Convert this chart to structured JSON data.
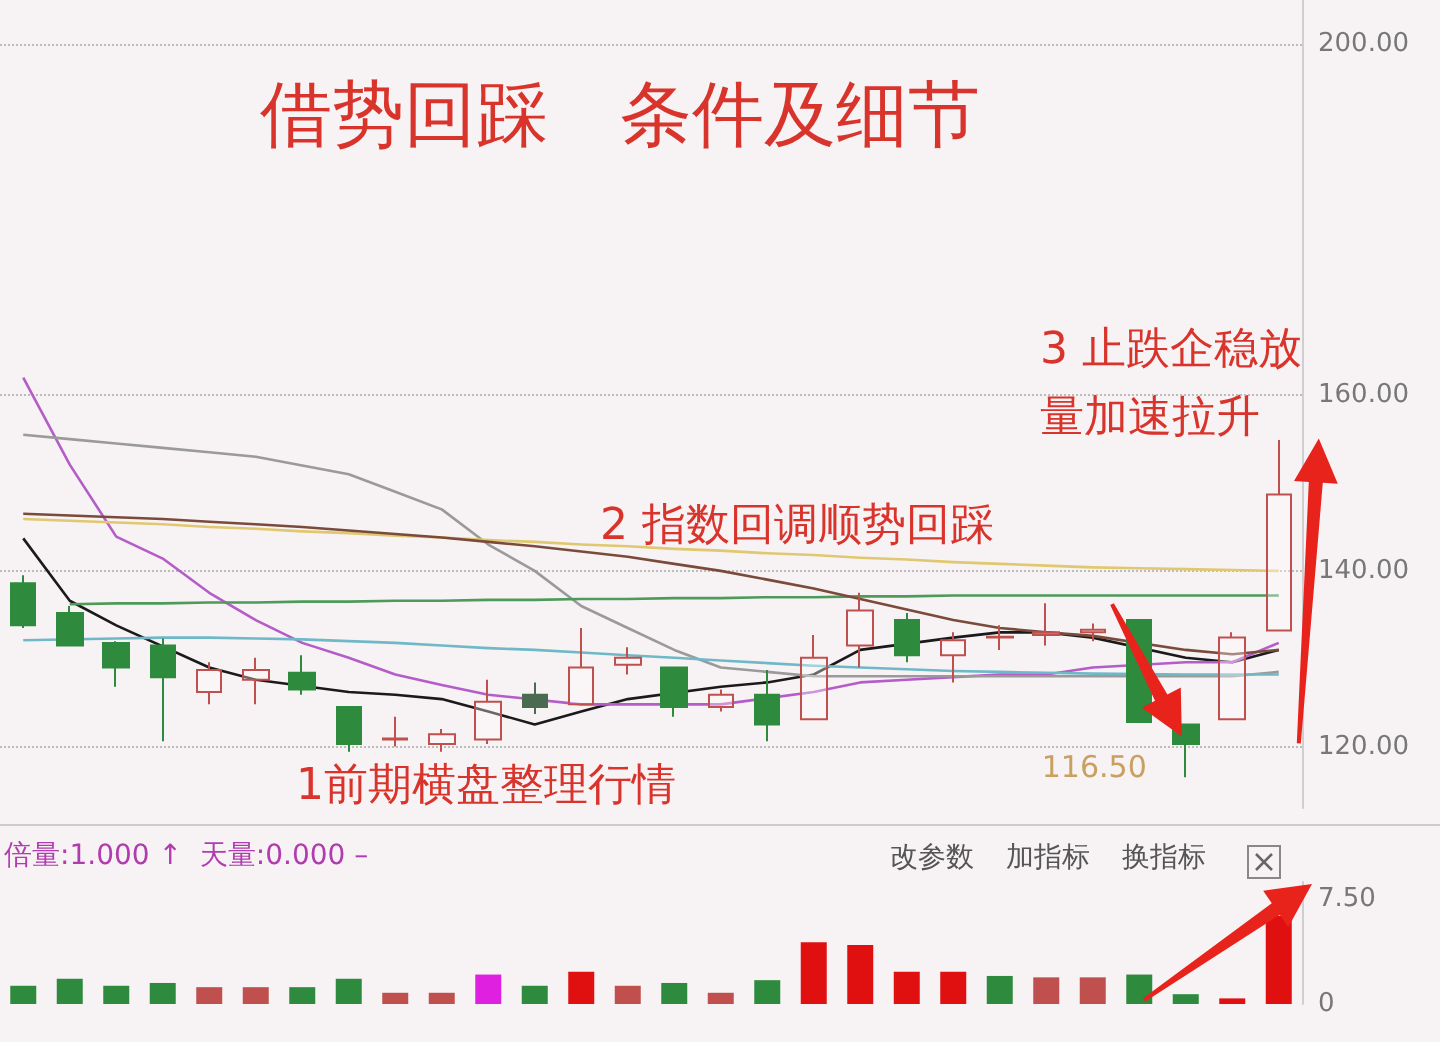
{
  "chart_data": [
    {
      "type": "candlestick",
      "title": "借势回踩　条件及细节",
      "categories": [
        null,
        null,
        null,
        null,
        null,
        null,
        null,
        null,
        null,
        null,
        null,
        null,
        null,
        null,
        null,
        null,
        null,
        null,
        null,
        null,
        null,
        null,
        null,
        null,
        null,
        null,
        null,
        null
      ],
      "ohlc": [
        [
          138.6,
          139.5,
          133.5,
          133.8
        ],
        [
          135.2,
          136,
          131.5,
          131.5
        ],
        [
          131.8,
          132,
          126.8,
          129
        ],
        [
          131.5,
          132.3,
          120.6,
          127.9
        ],
        [
          126.2,
          129.6,
          124.8,
          128.7
        ],
        [
          127.6,
          130.1,
          124.8,
          128.7
        ],
        [
          128.4,
          130.4,
          125.9,
          126.5
        ],
        [
          124.5,
          124.5,
          119.4,
          120.3
        ],
        [
          120.8,
          123.4,
          120,
          120.9
        ],
        [
          120.3,
          122,
          119.4,
          121.4
        ],
        [
          120.8,
          127.6,
          120.3,
          125.1
        ],
        [
          125.9,
          127.3,
          123.7,
          124.5
        ],
        [
          124.8,
          133.5,
          124.8,
          129
        ],
        [
          129.3,
          131.3,
          128.2,
          130.1
        ],
        [
          129,
          129,
          123.4,
          124.5
        ],
        [
          124.5,
          126.5,
          124,
          125.9
        ],
        [
          125.9,
          128.7,
          120.6,
          122.5
        ],
        [
          123.1,
          132.7,
          123.1,
          130.1
        ],
        [
          131.5,
          137.5,
          129,
          135.5
        ],
        [
          134.4,
          135.2,
          129.6,
          130.4
        ],
        [
          130.4,
          133,
          127.3,
          132.1
        ],
        [
          132.4,
          133.8,
          131,
          132.5
        ],
        [
          132.7,
          136.3,
          131.5,
          133
        ],
        [
          133,
          134,
          132,
          133.3
        ],
        [
          134.4,
          134.4,
          122.8,
          122.8
        ],
        [
          122.5,
          122.5,
          116.5,
          120.3
        ],
        [
          123.1,
          133,
          123.1,
          132.4
        ],
        [
          133.2,
          154.9,
          133.2,
          148.7
        ]
      ],
      "colors": [
        "#2e8b3e",
        "#2e8b3e",
        "#2e8b3e",
        "#2e8b3e",
        "#c0504d",
        "#c0504d",
        "#2e8b3e",
        "#2e8b3e",
        "#c0504d",
        "#c0504d",
        "#c0504d",
        "#4a6b50",
        "#c0504d",
        "#c0504d",
        "#2e8b3e",
        "#c0504d",
        "#2e8b3e",
        "#c0504d",
        "#c0504d",
        "#2e8b3e",
        "#c0504d",
        "#c0504d",
        "#c0504d",
        "#c0504d",
        "#2e8b3e",
        "#2e8b3e",
        "#c0504d",
        "#c0504d"
      ],
      "series": [
        {
          "type": "line",
          "color": "#1a1a1a",
          "values": [
            143.7,
            136.6,
            133.8,
            null,
            129,
            127.6,
            null,
            126.2,
            125.9,
            125.4,
            124,
            122.5,
            124,
            125.4,
            null,
            126.8,
            127.3,
            128.2,
            131,
            null,
            132.4,
            133,
            133,
            132.4,
            null,
            130.1,
            129.6,
            131
          ]
        },
        {
          "type": "line",
          "color": "#b45cc8",
          "values": [
            162,
            152.1,
            143.9,
            141.4,
            137.5,
            134.4,
            131.8,
            130.1,
            128.2,
            127,
            125.9,
            null,
            124.8,
            124.8,
            null,
            124.8,
            null,
            126.2,
            127.3,
            127.6,
            127.9,
            128.2,
            128.2,
            129,
            null,
            129.6,
            129.6,
            131.8
          ]
        },
        {
          "type": "line",
          "color": "#9a9a9a",
          "values": [
            155.5,
            155,
            154.5,
            154,
            153.5,
            153,
            152,
            151,
            149,
            147,
            143,
            140,
            136,
            133.5,
            131,
            129,
            128.5,
            128,
            128,
            128,
            128,
            128,
            128,
            128,
            null,
            128,
            128,
            128.5
          ]
        },
        {
          "type": "line",
          "color": "#e0c870",
          "values": [
            145.9,
            145.7,
            145.5,
            145.3,
            145,
            144.8,
            144.5,
            144.3,
            144,
            143.8,
            143.5,
            143.3,
            143,
            142.8,
            142.5,
            142.3,
            142,
            141.8,
            141.5,
            141.3,
            141,
            140.8,
            140.6,
            140.4,
            140.3,
            140.2,
            140.1,
            140
          ]
        },
        {
          "type": "line",
          "color": "#4e9a5a",
          "values": [
            null,
            136.2,
            136.3,
            136.3,
            136.4,
            136.4,
            136.5,
            136.5,
            136.6,
            136.6,
            136.7,
            136.7,
            136.8,
            136.8,
            136.9,
            136.9,
            137,
            137,
            137.1,
            137.1,
            137.2,
            137.2,
            137.2,
            137.2,
            137.2,
            137.2,
            137.2,
            137.2
          ]
        },
        {
          "type": "line",
          "color": "#6fb8c8",
          "values": [
            132.1,
            null,
            132.3,
            132.4,
            132.4,
            132.3,
            132.2,
            132,
            131.8,
            131.5,
            131.2,
            131,
            130.7,
            130.4,
            130.1,
            129.8,
            129.5,
            129.2,
            129,
            128.8,
            128.6,
            128.5,
            128.4,
            128.3,
            null,
            128.2,
            128.2,
            128.2
          ]
        },
        {
          "type": "line",
          "color": "#7a4a3a",
          "values": [
            146.5,
            146.3,
            146.1,
            145.9,
            145.6,
            145.3,
            145,
            144.6,
            144.2,
            143.8,
            143.3,
            142.8,
            142.2,
            141.6,
            140.8,
            140,
            139,
            138,
            136.8,
            135.6,
            134.4,
            133.5,
            133,
            132.6,
            null,
            131,
            130.5,
            131
          ]
        }
      ],
      "marker": "none",
      "ylim": [
        113,
        205
      ],
      "yticks": [
        {
          "value": 120,
          "label": "120.00"
        },
        {
          "value": 140,
          "label": "140.00"
        },
        {
          "value": 160,
          "label": "160.00"
        },
        {
          "value": 200,
          "label": "200.00"
        }
      ],
      "grid": "y",
      "annotations": [
        "1前期横盘整理行情",
        "2 指数回调顺势回踩",
        "3 止跌企稳放量加速拉升",
        "116.50"
      ]
    },
    {
      "type": "bar",
      "title": "倍量:1.000 ↑  天量:0.000 –",
      "categories": [
        null,
        null,
        null,
        null,
        null,
        null,
        null,
        null,
        null,
        null,
        null,
        null,
        null,
        null,
        null,
        null,
        null,
        null,
        null,
        null,
        null,
        null,
        null,
        null,
        null,
        null,
        null,
        null
      ],
      "values": [
        1.3,
        1.8,
        1.3,
        1.5,
        1.2,
        1.2,
        1.2,
        1.8,
        0.8,
        0.8,
        2.1,
        1.3,
        2.3,
        1.3,
        1.5,
        0.8,
        1.7,
        4.4,
        4.2,
        2.3,
        2.3,
        2.0,
        1.9,
        1.9,
        2.1,
        0.7,
        0.4,
        6.3
      ],
      "colors": [
        "#2e8b3e",
        "#2e8b3e",
        "#2e8b3e",
        "#2e8b3e",
        "#c0504d",
        "#c0504d",
        "#2e8b3e",
        "#2e8b3e",
        "#c0504d",
        "#c0504d",
        "#e020e0",
        "#2e8b3e",
        "#e01010",
        "#c0504d",
        "#2e8b3e",
        "#c0504d",
        "#2e8b3e",
        "#e01010",
        "#e01010",
        "#e01010",
        "#e01010",
        "#2e8b3e",
        "#c0504d",
        "#c0504d",
        "#2e8b3e",
        "#2e8b3e",
        "#e01010",
        "#e01010"
      ],
      "ylim": [
        0,
        8.7
      ],
      "yticks": [
        0,
        {
          "value": 7.5,
          "label": "7.50"
        }
      ],
      "annotations": [
        "改参数",
        "加指标",
        "换指标"
      ]
    }
  ]
}
